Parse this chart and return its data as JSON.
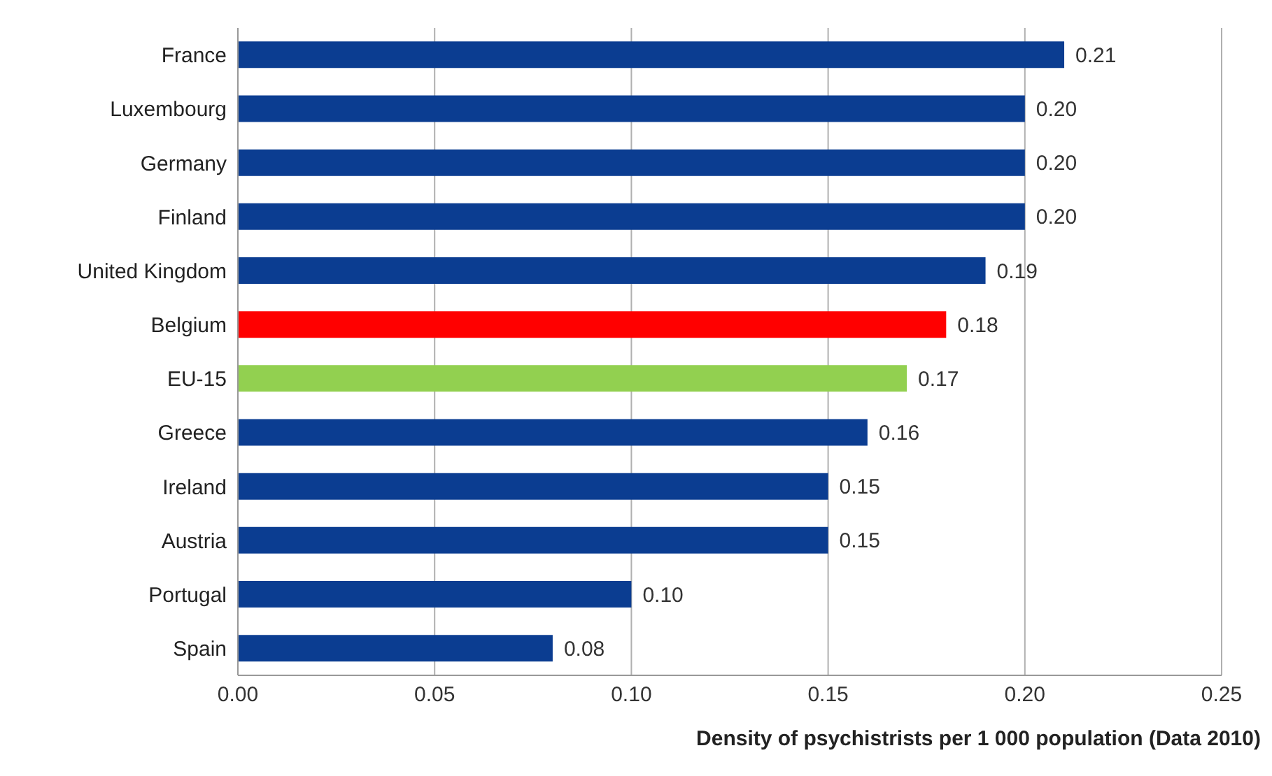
{
  "chart_data": {
    "type": "bar",
    "orientation": "horizontal",
    "xlabel": "Density of psychistrists per 1 000 population (Data 2010)",
    "categories": [
      "France",
      "Luxembourg",
      "Germany",
      "Finland",
      "United Kingdom",
      "Belgium",
      "EU-15",
      "Greece",
      "Ireland",
      "Austria",
      "Portugal",
      "Spain"
    ],
    "values": [
      0.21,
      0.2,
      0.2,
      0.2,
      0.19,
      0.18,
      0.17,
      0.16,
      0.15,
      0.15,
      0.1,
      0.08
    ],
    "value_labels": [
      "0.21",
      "0.20",
      "0.20",
      "0.20",
      "0.19",
      "0.18",
      "0.17",
      "0.16",
      "0.15",
      "0.15",
      "0.10",
      "0.08"
    ],
    "colors": [
      "#0b3d91",
      "#0b3d91",
      "#0b3d91",
      "#0b3d91",
      "#0b3d91",
      "#ff0000",
      "#92d050",
      "#0b3d91",
      "#0b3d91",
      "#0b3d91",
      "#0b3d91",
      "#0b3d91"
    ],
    "xlim": [
      0,
      0.25
    ],
    "xticks": [
      {
        "value": 0,
        "label": "0.00"
      },
      {
        "value": 0.05,
        "label": "0.05"
      },
      {
        "value": 0.1,
        "label": "0.10"
      },
      {
        "value": 0.15,
        "label": "0.15"
      },
      {
        "value": 0.2,
        "label": "0.20"
      },
      {
        "value": 0.25,
        "label": "0.25"
      }
    ],
    "grid": "x",
    "legend": false
  }
}
